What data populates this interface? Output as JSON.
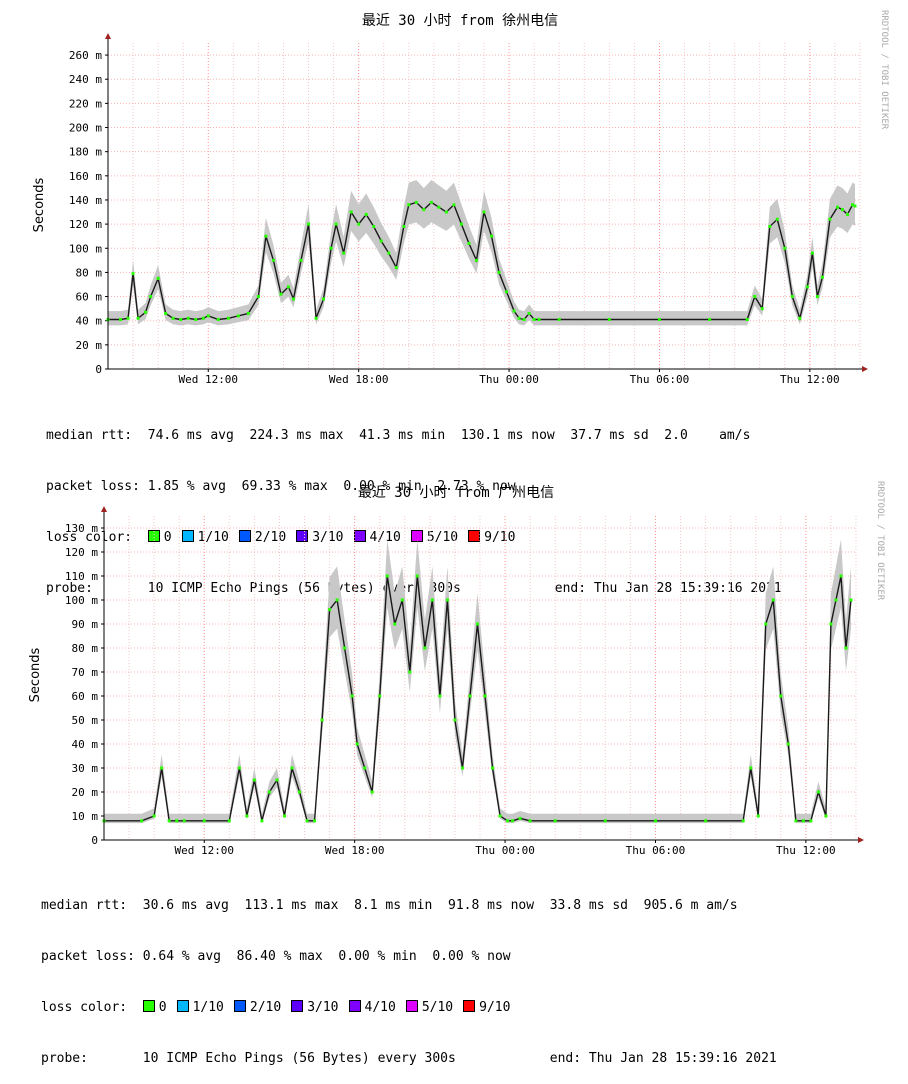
{
  "chart_data": [
    {
      "type": "line",
      "title": "最近 30 小时 from 徐州电信",
      "ylabel": "Seconds",
      "watermark": "RRDTOOL / TOBI OETIKER",
      "y_ticks": [
        "0",
        "20 m",
        "40 m",
        "60 m",
        "80 m",
        "100 m",
        "120 m",
        "140 m",
        "160 m",
        "180 m",
        "200 m",
        "220 m",
        "240 m",
        "260 m"
      ],
      "ylim": [
        0,
        0.27
      ],
      "x_ticks": [
        "Wed 12:00",
        "Wed 18:00",
        "Thu 00:00",
        "Thu 06:00",
        "Thu 12:00"
      ],
      "x_tick_hours": [
        12,
        18,
        24,
        30,
        36
      ],
      "xlim_hours": [
        8,
        38
      ],
      "grid": true,
      "series": [
        {
          "x_hours": [
            8.0,
            8.5,
            8.8,
            9.0,
            9.2,
            9.5,
            9.7,
            10.0,
            10.3,
            10.6,
            10.9,
            11.2,
            11.5,
            11.8,
            12.0,
            12.4,
            12.8,
            13.2,
            13.6,
            14.0,
            14.3,
            14.6,
            14.9,
            15.2,
            15.4,
            15.7,
            16.0,
            16.3,
            16.6,
            16.9,
            17.1,
            17.4,
            17.7,
            18.0,
            18.3,
            18.6,
            18.9,
            19.2,
            19.5,
            19.8,
            20.0,
            20.3,
            20.6,
            20.9,
            21.2,
            21.5,
            21.8,
            22.1,
            22.4,
            22.7,
            23.0,
            23.3,
            23.6,
            23.9,
            24.2,
            24.4,
            24.6,
            24.8,
            25.0,
            25.2,
            26.0,
            28.0,
            30.0,
            32.0,
            33.5,
            33.8,
            34.1,
            34.4,
            34.7,
            35.0,
            35.3,
            35.6,
            35.9,
            36.1,
            36.3,
            36.5,
            36.8,
            37.1,
            37.3,
            37.5,
            37.7,
            37.8
          ],
          "values": [
            0.041,
            0.041,
            0.042,
            0.079,
            0.042,
            0.047,
            0.06,
            0.075,
            0.046,
            0.042,
            0.041,
            0.042,
            0.041,
            0.042,
            0.044,
            0.041,
            0.042,
            0.044,
            0.046,
            0.06,
            0.11,
            0.09,
            0.062,
            0.068,
            0.058,
            0.09,
            0.12,
            0.042,
            0.058,
            0.1,
            0.12,
            0.096,
            0.13,
            0.12,
            0.128,
            0.118,
            0.106,
            0.096,
            0.084,
            0.118,
            0.136,
            0.138,
            0.132,
            0.138,
            0.134,
            0.13,
            0.136,
            0.12,
            0.104,
            0.09,
            0.13,
            0.11,
            0.08,
            0.064,
            0.048,
            0.042,
            0.041,
            0.046,
            0.041,
            0.041,
            0.041,
            0.041,
            0.041,
            0.041,
            0.041,
            0.06,
            0.05,
            0.118,
            0.124,
            0.1,
            0.06,
            0.042,
            0.068,
            0.096,
            0.06,
            0.076,
            0.124,
            0.134,
            0.132,
            0.128,
            0.136,
            0.135
          ]
        }
      ],
      "legend": {
        "lines": [
          "median rtt:  74.6 ms avg  224.3 ms max  41.3 ms min  130.1 ms now  37.7 ms sd  2.0    am/s",
          "packet loss: 1.85 % avg  69.33 % max  0.00 % min  2.73 % now"
        ],
        "loss_label": "loss color:",
        "loss_items": [
          {
            "label": "0",
            "color": "#26ff00"
          },
          {
            "label": "1/10",
            "color": "#00b8ff"
          },
          {
            "label": "2/10",
            "color": "#0059ff"
          },
          {
            "label": "3/10",
            "color": "#5e00ff"
          },
          {
            "label": "4/10",
            "color": "#7e00ff"
          },
          {
            "label": "5/10",
            "color": "#dd00ff"
          },
          {
            "label": "9/10",
            "color": "#ff0000"
          }
        ],
        "probe_label": "probe:",
        "probe_text": "10 ICMP Echo Pings (56 Bytes) every 300s",
        "end_text": "end: Thu Jan 28 15:39:16 2021"
      }
    },
    {
      "type": "line",
      "title": "最近 30 小时 from 广州电信",
      "ylabel": "Seconds",
      "watermark": "RRDTOOL / TOBI OETIKER",
      "y_ticks": [
        "0",
        "10 m",
        "20 m",
        "30 m",
        "40 m",
        "50 m",
        "60 m",
        "70 m",
        "80 m",
        "90 m",
        "100 m",
        "110 m",
        "120 m",
        "130 m"
      ],
      "ylim": [
        0,
        0.135
      ],
      "x_ticks": [
        "Wed 12:00",
        "Wed 18:00",
        "Thu 00:00",
        "Thu 06:00",
        "Thu 12:00"
      ],
      "x_tick_hours": [
        12,
        18,
        24,
        30,
        36
      ],
      "xlim_hours": [
        8,
        38
      ],
      "grid": true,
      "series": [
        {
          "x_hours": [
            8.0,
            9.5,
            10.0,
            10.3,
            10.6,
            10.9,
            11.2,
            12.0,
            13.0,
            13.4,
            13.7,
            14.0,
            14.3,
            14.6,
            14.9,
            15.2,
            15.5,
            15.8,
            16.1,
            16.4,
            16.7,
            17.0,
            17.3,
            17.6,
            17.9,
            18.1,
            18.4,
            18.7,
            19.0,
            19.3,
            19.6,
            19.9,
            20.2,
            20.5,
            20.8,
            21.1,
            21.4,
            21.7,
            22.0,
            22.3,
            22.6,
            22.9,
            23.2,
            23.5,
            23.8,
            24.1,
            24.3,
            24.6,
            25.0,
            26.0,
            28.0,
            30.0,
            32.0,
            33.5,
            33.8,
            34.1,
            34.4,
            34.7,
            35.0,
            35.3,
            35.6,
            35.9,
            36.2,
            36.5,
            36.8,
            37.0,
            37.2,
            37.4,
            37.6,
            37.8
          ],
          "values": [
            0.008,
            0.008,
            0.01,
            0.03,
            0.008,
            0.008,
            0.008,
            0.008,
            0.008,
            0.03,
            0.01,
            0.025,
            0.008,
            0.02,
            0.025,
            0.01,
            0.03,
            0.02,
            0.008,
            0.008,
            0.05,
            0.096,
            0.1,
            0.08,
            0.06,
            0.04,
            0.03,
            0.02,
            0.06,
            0.11,
            0.09,
            0.1,
            0.07,
            0.11,
            0.08,
            0.1,
            0.06,
            0.1,
            0.05,
            0.03,
            0.06,
            0.09,
            0.06,
            0.03,
            0.01,
            0.008,
            0.008,
            0.009,
            0.008,
            0.008,
            0.008,
            0.008,
            0.008,
            0.008,
            0.03,
            0.01,
            0.09,
            0.1,
            0.06,
            0.04,
            0.008,
            0.008,
            0.008,
            0.02,
            0.01,
            0.09,
            0.1,
            0.11,
            0.08,
            0.1
          ]
        }
      ],
      "legend": {
        "lines": [
          "median rtt:  30.6 ms avg  113.1 ms max  8.1 ms min  91.8 ms now  33.8 ms sd  905.6 m am/s",
          "packet loss: 0.64 % avg  86.40 % max  0.00 % min  0.00 % now"
        ],
        "loss_label": "loss color:",
        "loss_items": [
          {
            "label": "0",
            "color": "#26ff00"
          },
          {
            "label": "1/10",
            "color": "#00b8ff"
          },
          {
            "label": "2/10",
            "color": "#0059ff"
          },
          {
            "label": "3/10",
            "color": "#5e00ff"
          },
          {
            "label": "4/10",
            "color": "#7e00ff"
          },
          {
            "label": "5/10",
            "color": "#dd00ff"
          },
          {
            "label": "9/10",
            "color": "#ff0000"
          }
        ],
        "probe_label": "probe:",
        "probe_text": "10 ICMP Echo Pings (56 Bytes) every 300s",
        "end_text": "end: Thu Jan 28 15:39:16 2021"
      }
    }
  ]
}
